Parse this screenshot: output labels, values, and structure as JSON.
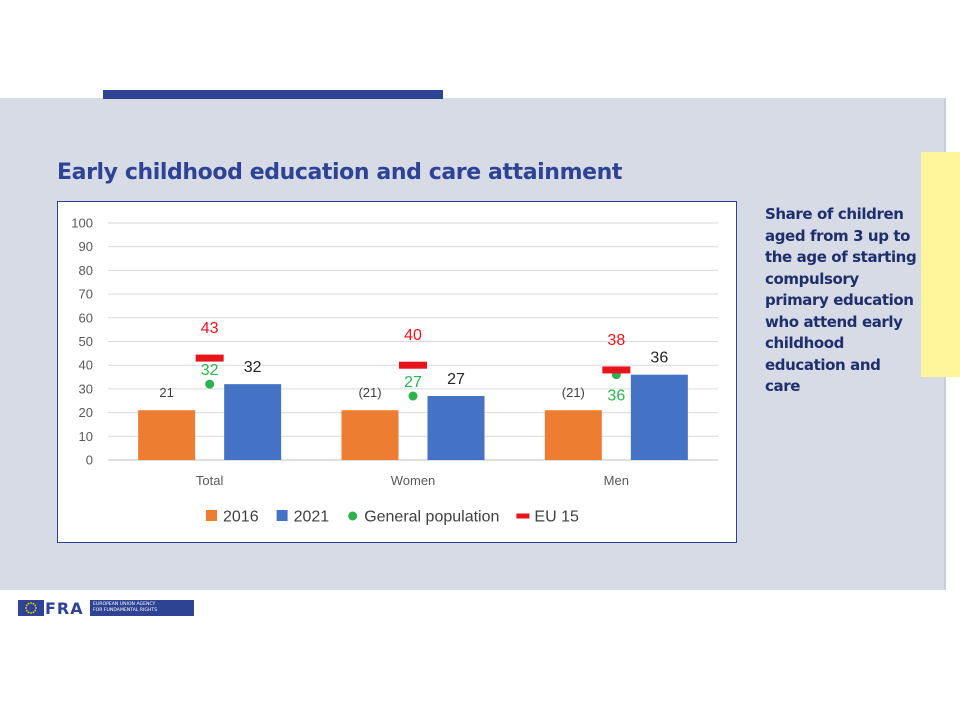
{
  "slide": {
    "title": "Early childhood education and care attainment",
    "side_note": "Share of children aged from 3 up to the age of starting compulsory primary education who attend early childhood education and care"
  },
  "logo": {
    "acronym": "FRA",
    "tagline_line1": "EUROPEAN UNION AGENCY",
    "tagline_line2": "FOR FUNDAMENTAL RIGHTS"
  },
  "colors": {
    "brand_blue": "#2e4394",
    "panel_bg": "#d6dbe6",
    "accent_yellow": "#fff59a"
  },
  "chart_data": {
    "type": "bar",
    "categories": [
      "Total",
      "Women",
      "Men"
    ],
    "ylim": [
      0,
      100
    ],
    "yticks": [
      0,
      10,
      20,
      30,
      40,
      50,
      60,
      70,
      80,
      90,
      100
    ],
    "grid": true,
    "legend_position": "bottom",
    "series": [
      {
        "name": "2016",
        "type": "bar",
        "color": "#ed7d31",
        "values": [
          21,
          21,
          21
        ],
        "labels": [
          "21",
          "(21)",
          "(21)"
        ],
        "label_color": "#404040"
      },
      {
        "name": "2021",
        "type": "bar",
        "color": "#4472c4",
        "values": [
          32,
          27,
          36
        ],
        "labels": [
          "32",
          "27",
          "36"
        ],
        "label_color": "#262626"
      },
      {
        "name": "General population",
        "type": "marker-dot",
        "color": "#2eb24f",
        "values": [
          32,
          27,
          36
        ],
        "labels": [
          "32",
          "27",
          "36"
        ],
        "label_color": "#2eb24f"
      },
      {
        "name": "EU 15",
        "type": "marker-dash",
        "color": "#e8141c",
        "values": [
          43,
          40,
          38
        ],
        "labels": [
          "43",
          "40",
          "38"
        ],
        "label_color": "#e8141c"
      }
    ]
  }
}
